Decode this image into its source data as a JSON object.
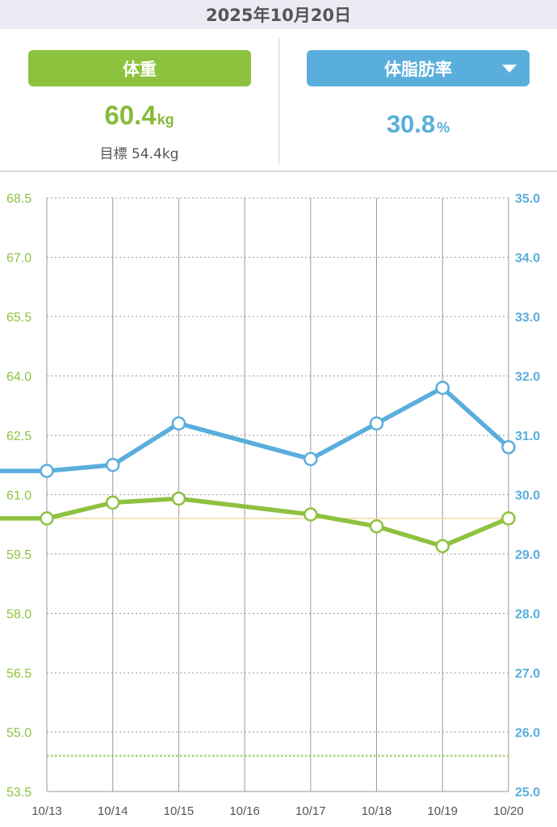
{
  "header": {
    "date": "2025年10月20日"
  },
  "weight_panel": {
    "button_label": "体重",
    "value": "60.4",
    "unit": "kg",
    "goal_label": "目標",
    "goal_value": "54.4kg"
  },
  "fat_panel": {
    "button_label": "体脂肪率",
    "value": "30.8",
    "unit": "%",
    "dropdown_icon": "chevron-down-icon"
  },
  "colors": {
    "weight": "#8dc23f",
    "fat": "#5aaedc",
    "header_bg": "#ebebf3"
  },
  "chart_data": {
    "type": "line",
    "x": [
      "10/13",
      "10/14",
      "10/15",
      "10/16",
      "10/17",
      "10/18",
      "10/19",
      "10/20"
    ],
    "y_left": {
      "ticks": [
        "68.5",
        "67.0",
        "65.5",
        "64.0",
        "62.5",
        "61.0",
        "59.5",
        "58.0",
        "56.5",
        "55.0",
        "53.5"
      ],
      "range": [
        53.5,
        68.5
      ]
    },
    "y_right": {
      "ticks": [
        "35.0",
        "34.0",
        "33.0",
        "32.0",
        "31.0",
        "30.0",
        "29.0",
        "28.0",
        "27.0",
        "26.0",
        "25.0"
      ],
      "range": [
        25.0,
        35.0
      ]
    },
    "series": [
      {
        "axis": "left",
        "values": [
          60.4,
          60.8,
          60.9,
          null,
          60.5,
          60.2,
          59.7,
          60.4
        ],
        "leading_value": 60.4
      },
      {
        "axis": "right",
        "values": [
          30.4,
          30.5,
          31.2,
          null,
          30.6,
          31.2,
          31.8,
          30.8
        ],
        "leading_value": 30.4
      }
    ],
    "reference_lines": [
      {
        "axis": "left",
        "value": 60.4,
        "style": "solid-thin"
      },
      {
        "axis": "left",
        "value": 54.4,
        "style": "dotted"
      }
    ],
    "grid": true
  }
}
